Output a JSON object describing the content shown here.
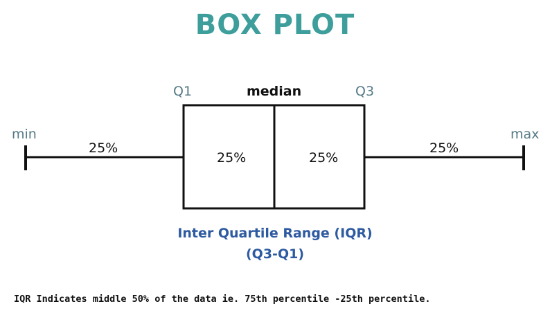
{
  "title": "BOX PLOT",
  "labels": {
    "min": "min",
    "max": "max",
    "q1": "Q1",
    "q3": "Q3",
    "median": "median",
    "left_whisker_pct": "25%",
    "box_left_pct": "25%",
    "box_right_pct": "25%",
    "right_whisker_pct": "25%"
  },
  "iqr": {
    "line1": "Inter Quartile Range (IQR)",
    "line2": "(Q3-Q1)"
  },
  "note": "IQR Indicates middle 50% of the data ie. 75th percentile -25th percentile.",
  "colors": {
    "title": "#3d9e9c",
    "muted_label": "#557a87",
    "iqr_text": "#2d5aa0",
    "lines": "#111111"
  }
}
